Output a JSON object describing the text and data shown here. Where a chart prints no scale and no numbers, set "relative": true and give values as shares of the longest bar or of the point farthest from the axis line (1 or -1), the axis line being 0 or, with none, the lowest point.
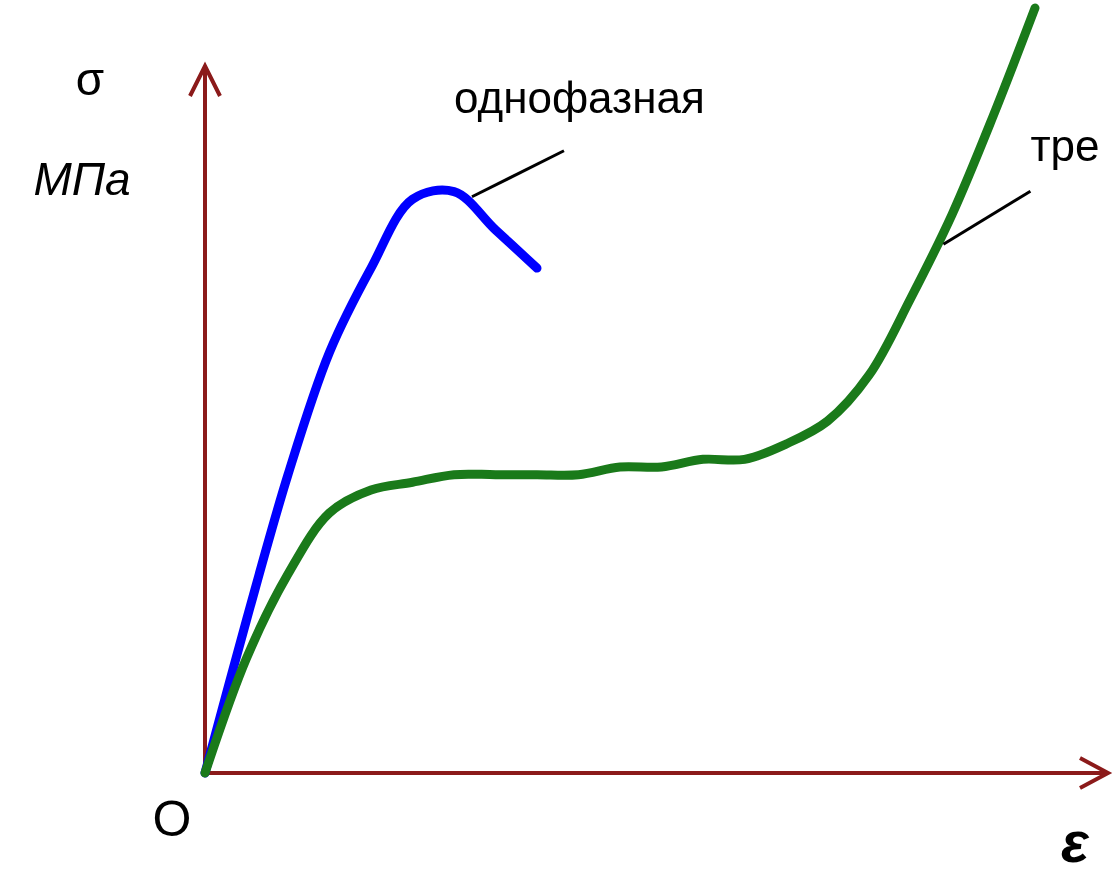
{
  "chart_data": {
    "type": "line",
    "relative": true,
    "xlabel": "ε",
    "ylabel": "σ МПа",
    "annotations": [
      "O"
    ],
    "legend": false,
    "categories": [
      null,
      null,
      null,
      null,
      null,
      null,
      null,
      null,
      null,
      null,
      null,
      null,
      null,
      null,
      null,
      null,
      null,
      null,
      null,
      null,
      null
    ],
    "series": [
      {
        "name": "однофазная",
        "color": "#0000ff",
        "values": [
          0,
          0.2,
          0.39,
          0.55,
          0.66,
          0.75,
          0.76,
          0.71,
          0.66,
          null,
          null,
          null,
          null,
          null,
          null,
          null,
          null,
          null,
          null,
          null,
          null
        ]
      },
      {
        "name": "тре",
        "color": "#1a7a1a",
        "values": [
          0,
          0.15,
          0.26,
          0.34,
          0.37,
          0.38,
          0.39,
          0.39,
          0.39,
          0.39,
          0.4,
          0.4,
          0.41,
          0.41,
          0.43,
          0.46,
          0.52,
          0.62,
          0.73,
          0.86,
          1
        ]
      }
    ]
  }
}
